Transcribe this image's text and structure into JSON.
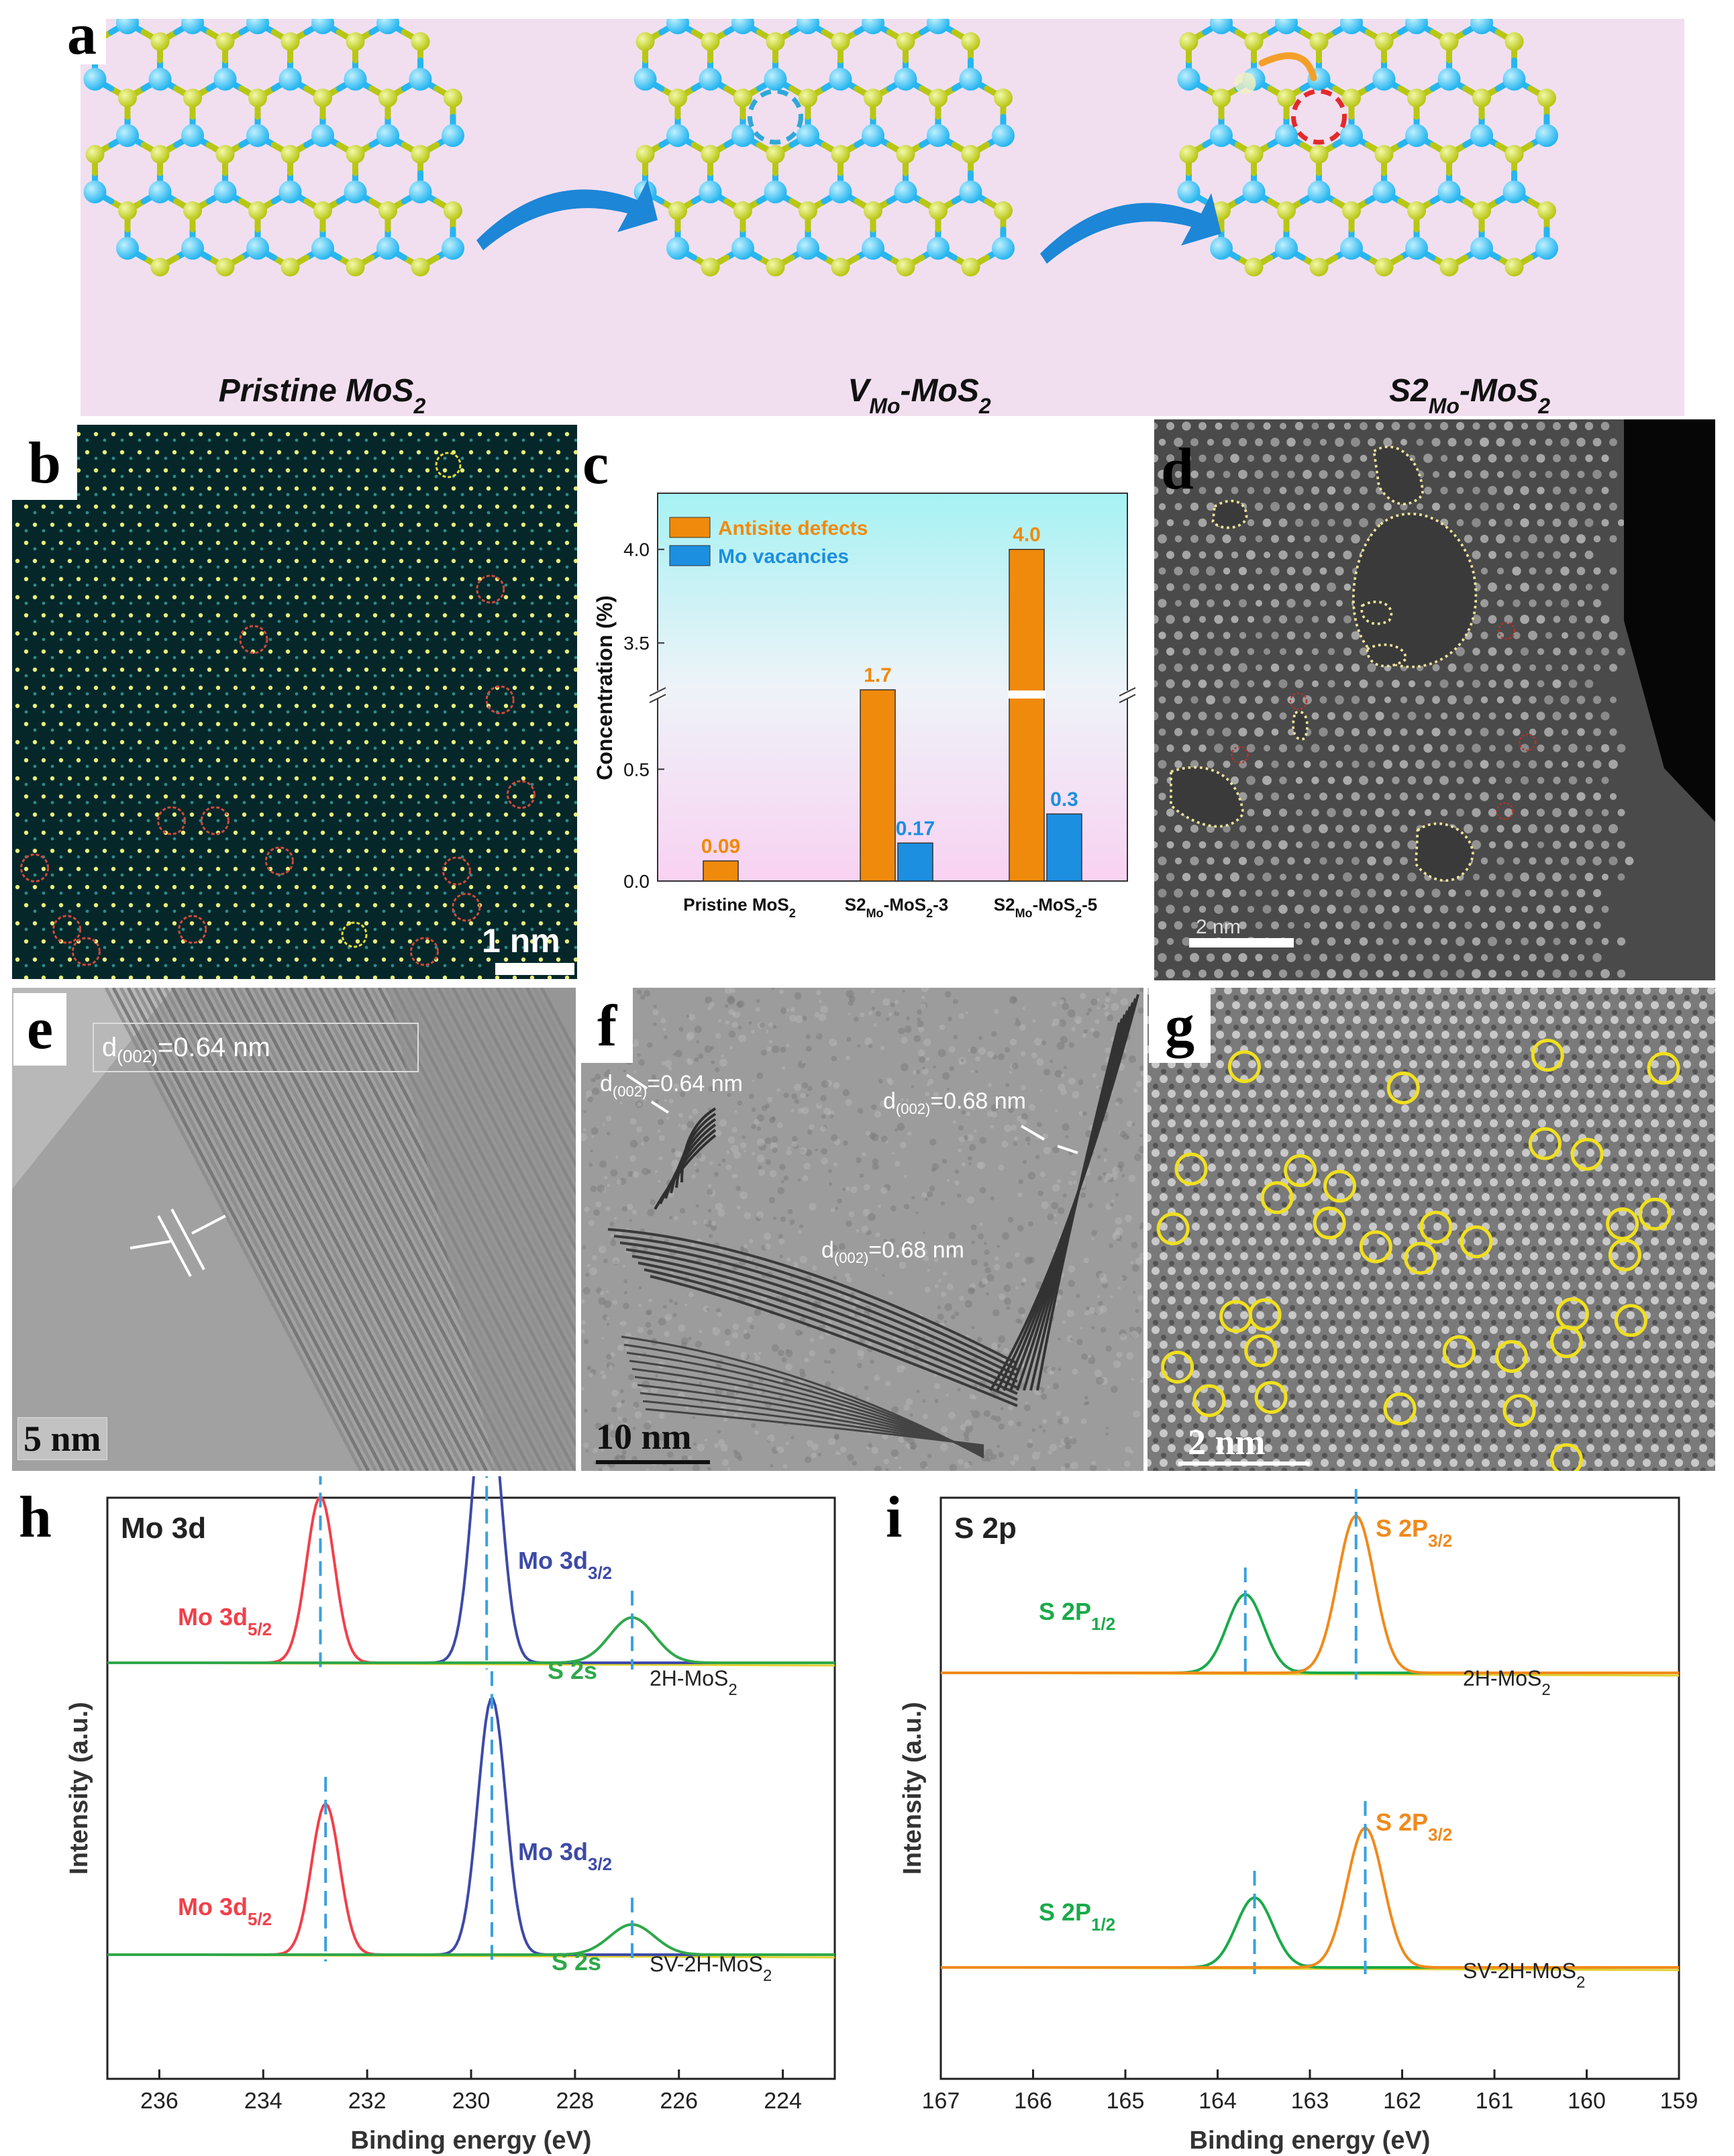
{
  "panel_labels": {
    "a": "a",
    "b": "b",
    "c": "c",
    "d": "d",
    "e": "e",
    "f": "f",
    "g": "g",
    "h": "h",
    "i": "i"
  },
  "panel_a": {
    "captions": [
      {
        "main": "Pristine MoS",
        "sub": "2",
        "pre": ""
      },
      {
        "pre": "V",
        "presub": "Mo",
        "main": "-MoS",
        "sub": "2"
      },
      {
        "pre": "S2",
        "presub": "Mo",
        "main": "-MoS",
        "sub": "2"
      }
    ],
    "colors": {
      "mo": "#27b6f0",
      "s": "#b8c714",
      "bg": "#f1dff0",
      "arrow": "#1d86d6"
    }
  },
  "panel_b": {
    "scale_label": "1 nm"
  },
  "panel_d": {
    "scale_label": "2 nm"
  },
  "panel_e": {
    "scale_label": "5 nm",
    "annotation_main": "d",
    "annotation_sub": "(002)",
    "annotation_value": "=0.64 nm"
  },
  "panel_f": {
    "scale_label": "10 nm",
    "annotations": [
      {
        "main": "d",
        "sub": "(002)",
        "value": "=0.64 nm"
      },
      {
        "main": "d",
        "sub": "(002)",
        "value": "=0.68 nm"
      },
      {
        "main": "d",
        "sub": "(002)",
        "value": "=0.68 nm"
      }
    ]
  },
  "panel_g": {
    "scale_label": "2 nm"
  },
  "chart_data": [
    {
      "panel": "c",
      "type": "bar",
      "categories": [
        "Pristine MoS2",
        "S2Mo-MoS2-3",
        "S2Mo-MoS2-5"
      ],
      "category_labels": [
        {
          "a": "Pristine MoS",
          "asub": "2",
          "b": "",
          "bsub": "",
          "c": ""
        },
        {
          "a": "S2",
          "asub": "Mo",
          "b": "-MoS",
          "bsub": "2",
          "c": "-3"
        },
        {
          "a": "S2",
          "asub": "Mo",
          "b": "-MoS",
          "bsub": "2",
          "c": "-5"
        }
      ],
      "series": [
        {
          "name": "Antisite defects",
          "values": [
            0.09,
            1.7,
            4.0
          ],
          "labels": [
            "0.09",
            "1.7",
            "4.0"
          ],
          "color": "#f08a0c"
        },
        {
          "name": "Mo vacancies",
          "values": [
            null,
            0.17,
            0.3
          ],
          "labels": [
            "",
            "0.17",
            "0.3"
          ],
          "color": "#1c8fe0"
        }
      ],
      "ylabel": "Concentration (%)",
      "axis_break": true,
      "yticks_lower": [
        "0.0",
        "0.5"
      ],
      "yticks_upper": [
        "3.5",
        "4.0"
      ],
      "legend_position": "top-left"
    },
    {
      "panel": "h",
      "type": "line",
      "title": "Mo 3d",
      "xlabel": "Binding energy (eV)",
      "ylabel": "Intensity (a.u.)",
      "xlim": [
        237,
        223
      ],
      "xticks": [
        "236",
        "234",
        "232",
        "230",
        "228",
        "226",
        "224"
      ],
      "spectra": [
        {
          "name_main": "2H-MoS",
          "name_sub": "2",
          "peaks": [
            {
              "label_main": "Mo 3d",
              "label_sub": "5/2",
              "center": 232.9,
              "height": 0.55,
              "color": "#f1404a"
            },
            {
              "label_main": "Mo 3d",
              "label_sub": "3/2",
              "center": 229.7,
              "height": 0.95,
              "color": "#3d4aa8"
            },
            {
              "label_main": "S 2s",
              "label_sub": "",
              "center": 226.9,
              "height": 0.15,
              "color": "#2fa84a"
            }
          ]
        },
        {
          "name_main": "SV-2H-MoS",
          "name_sub": "2",
          "peaks": [
            {
              "label_main": "Mo 3d",
              "label_sub": "5/2",
              "center": 232.8,
              "height": 0.5,
              "color": "#f1404a"
            },
            {
              "label_main": "Mo 3d",
              "label_sub": "3/2",
              "center": 229.6,
              "height": 0.85,
              "color": "#3d4aa8"
            },
            {
              "label_main": "S 2s",
              "label_sub": "",
              "center": 226.9,
              "height": 0.1,
              "color": "#2fa84a"
            }
          ]
        }
      ]
    },
    {
      "panel": "i",
      "type": "line",
      "title": "S 2p",
      "xlabel": "Binding energy (eV)",
      "ylabel": "Intensity (a.u.)",
      "xlim": [
        167,
        159
      ],
      "xticks": [
        "167",
        "166",
        "165",
        "164",
        "163",
        "162",
        "161",
        "160",
        "159"
      ],
      "spectra": [
        {
          "name_main": "2H-MoS",
          "name_sub": "2",
          "peaks": [
            {
              "label_main": "S 2P",
              "label_sub": "1/2",
              "center": 163.7,
              "height": 0.45,
              "color": "#1aaa4a"
            },
            {
              "label_main": "S 2P",
              "label_sub": "3/2",
              "center": 162.5,
              "height": 0.9,
              "color": "#f08a1c"
            }
          ]
        },
        {
          "name_main": "SV-2H-MoS",
          "name_sub": "2",
          "peaks": [
            {
              "label_main": "S 2P",
              "label_sub": "1/2",
              "center": 163.6,
              "height": 0.4,
              "color": "#1aaa4a"
            },
            {
              "label_main": "S 2P",
              "label_sub": "3/2",
              "center": 162.4,
              "height": 0.8,
              "color": "#f08a1c"
            }
          ]
        }
      ]
    }
  ]
}
